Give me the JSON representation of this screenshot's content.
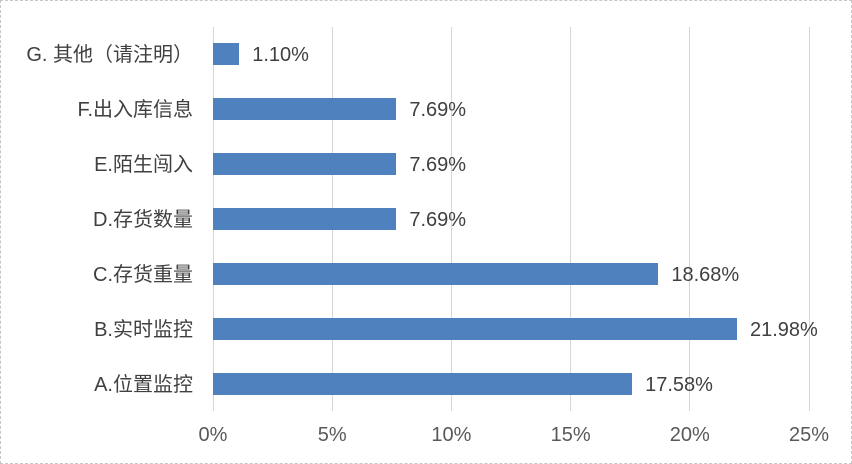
{
  "chart_data": {
    "type": "bar",
    "orientation": "horizontal",
    "categories": [
      "G. 其他（请注明）",
      "F.出入库信息",
      "E.陌生闯入",
      "D.存货数量",
      "C.存货重量",
      "B.实时监控",
      "A.位置监控"
    ],
    "values": [
      1.1,
      7.69,
      7.69,
      7.69,
      18.68,
      21.98,
      17.58
    ],
    "data_labels": [
      "1.10%",
      "7.69%",
      "7.69%",
      "7.69%",
      "18.68%",
      "21.98%",
      "17.58%"
    ],
    "x_ticks": [
      {
        "value": 0,
        "label": "0%"
      },
      {
        "value": 5,
        "label": "5%"
      },
      {
        "value": 10,
        "label": "10%"
      },
      {
        "value": 15,
        "label": "15%"
      },
      {
        "value": 20,
        "label": "20%"
      },
      {
        "value": 25,
        "label": "25%"
      }
    ],
    "xlim": [
      0,
      25
    ],
    "grid": "vertical",
    "legend": "none",
    "title": "",
    "colors": {
      "bar": "#4e81bd",
      "gridline": "#d6d6d6",
      "data_label": "#404040",
      "category_label": "#404040",
      "tick_label": "#595959",
      "background": "#ffffff",
      "chart_border": "#c6c6c6"
    }
  }
}
